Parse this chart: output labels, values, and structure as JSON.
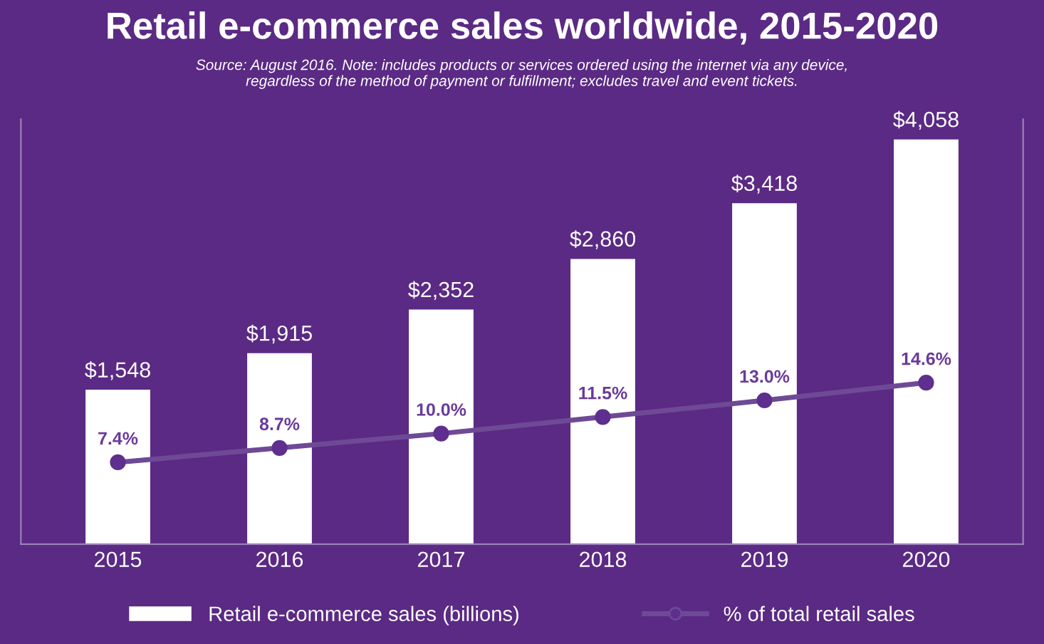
{
  "chart_data": {
    "type": "bar",
    "title": "Retail e-commerce sales worldwide, 2015-2020",
    "subtitle": "Source: August 2016. Note: includes products or services ordered using the internet via any device,\nregardless of the method of payment or fulfillment; excludes travel and event tickets.",
    "categories": [
      "2015",
      "2016",
      "2017",
      "2018",
      "2019",
      "2020"
    ],
    "series": [
      {
        "name": "Retail e-commerce sales (billions)",
        "color": "#ffffff",
        "values": [
          1548,
          1915,
          2352,
          2860,
          3418,
          4058
        ],
        "value_labels": [
          "$1,548",
          "$1,915",
          "$2,352",
          "$2,860",
          "$3,418",
          "$4,058"
        ]
      },
      {
        "name": "% of total retail sales",
        "type": "line",
        "axis": "y2",
        "color": "#6e4a96",
        "values": [
          7.4,
          8.7,
          10.0,
          11.5,
          13.0,
          14.6
        ],
        "value_labels": [
          "7.4%",
          "8.7%",
          "10.0%",
          "11.5%",
          "13.0%",
          "14.6%"
        ]
      }
    ],
    "marker": "circle",
    "line_style": "solid",
    "legend": "bottom",
    "tick_labels": "x"
  }
}
